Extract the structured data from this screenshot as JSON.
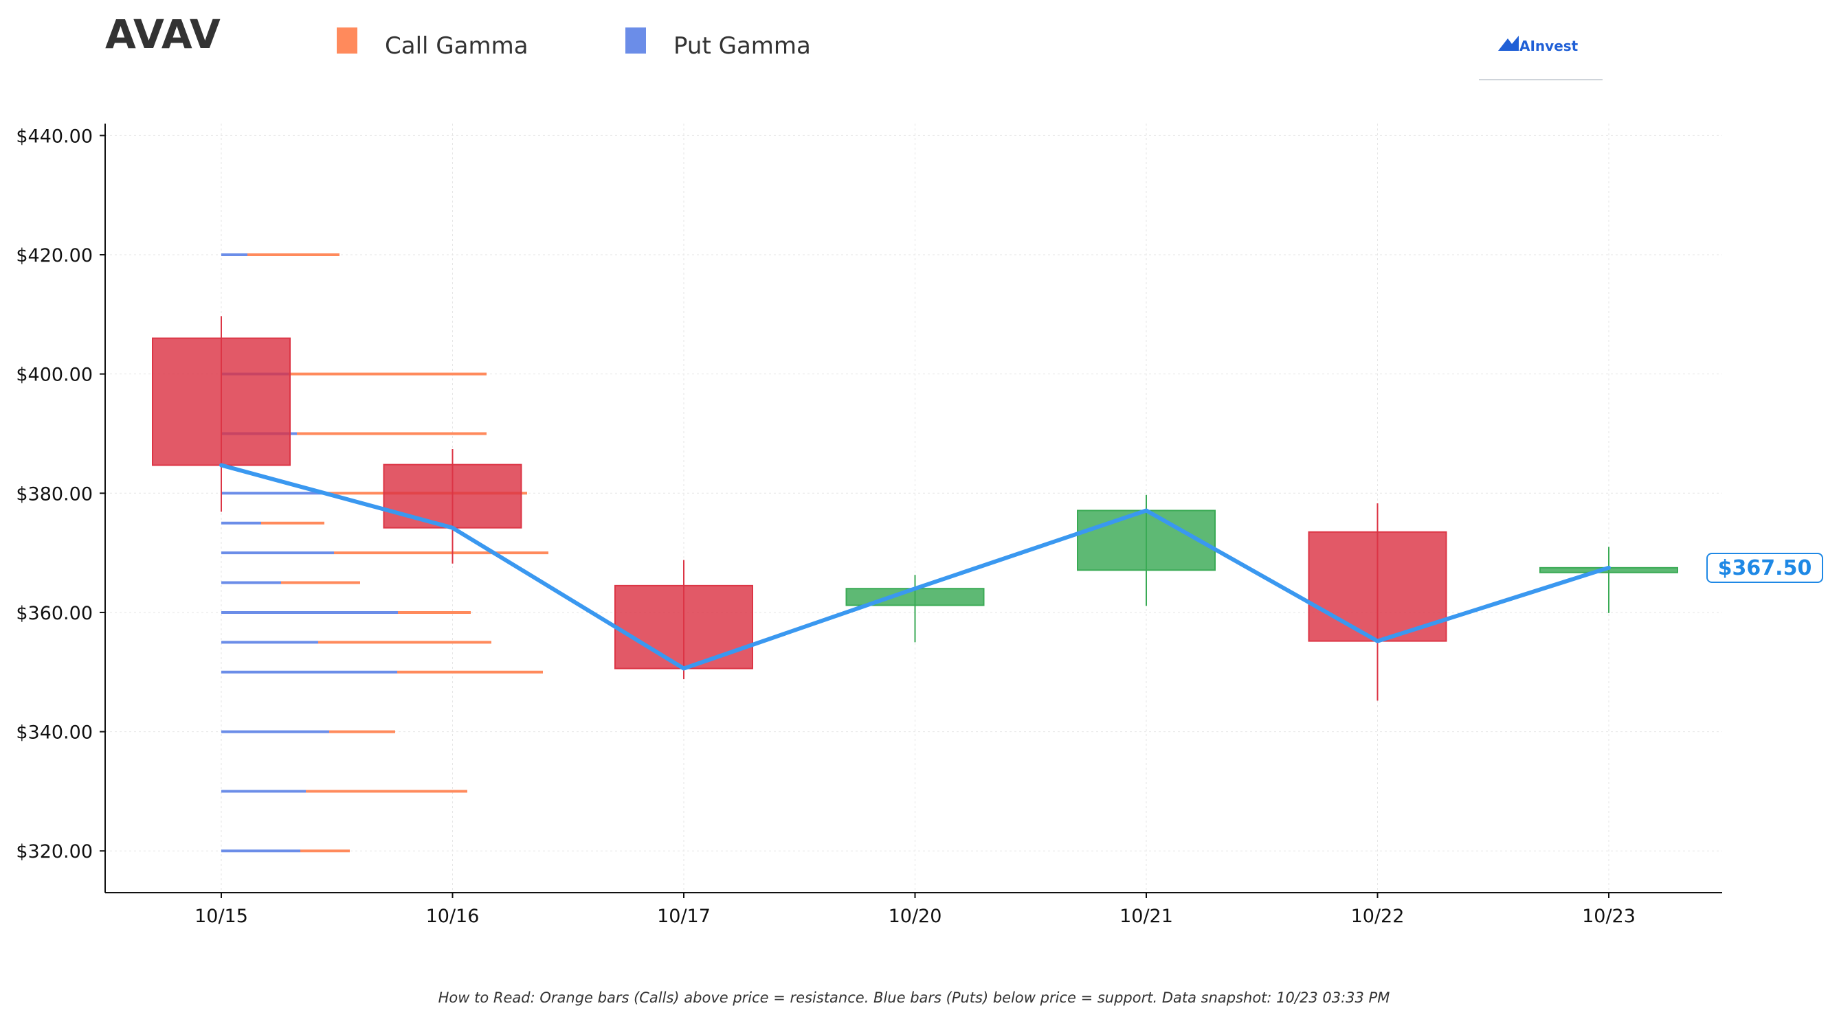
{
  "title": "AVAV",
  "legend": {
    "call_label": "Call Gamma",
    "put_label": "Put Gamma",
    "call_color": "#ff8a5c",
    "put_color": "#6b8de8"
  },
  "brand": {
    "name": "AInvest",
    "color": "#1f5fd6"
  },
  "footnote": "How to Read: Orange bars (Calls) above price = resistance. Blue bars (Puts) below price = support. Data snapshot: 10/23 03:33 PM",
  "current_price_label": "$367.50",
  "colors": {
    "up": "#3aaa55",
    "down": "#dc3545",
    "price_line": "#3a98f0",
    "price_tag_text": "#1e88e5",
    "grid": "#e6e6e6"
  },
  "chart_data": {
    "type": "candlestick",
    "ylim": [
      313,
      442
    ],
    "y_ticks": [
      320,
      340,
      360,
      380,
      400,
      420,
      440
    ],
    "y_tick_labels": [
      "$320.00",
      "$340.00",
      "$360.00",
      "$380.00",
      "$400.00",
      "$420.00",
      "$440.00"
    ],
    "categories": [
      "10/15",
      "10/16",
      "10/17",
      "10/20",
      "10/21",
      "10/22",
      "10/23"
    ],
    "candles": [
      {
        "date": "10/15",
        "open": 406.0,
        "close": 384.7,
        "high": 409.7,
        "low": 376.9
      },
      {
        "date": "10/16",
        "open": 384.8,
        "close": 374.2,
        "high": 387.4,
        "low": 368.2
      },
      {
        "date": "10/17",
        "open": 364.5,
        "close": 350.6,
        "high": 368.8,
        "low": 348.8
      },
      {
        "date": "10/20",
        "open": 361.2,
        "close": 364.0,
        "high": 366.3,
        "low": 355.0
      },
      {
        "date": "10/21",
        "open": 367.1,
        "close": 377.1,
        "high": 379.7,
        "low": 361.1
      },
      {
        "date": "10/22",
        "open": 373.5,
        "close": 355.2,
        "high": 378.3,
        "low": 345.2
      },
      {
        "date": "10/23",
        "open": 366.7,
        "close": 367.5,
        "high": 371.0,
        "low": 359.9
      }
    ],
    "close_line": [
      384.7,
      374.2,
      350.6,
      364.0,
      377.1,
      355.2,
      367.5
    ],
    "gamma_levels": [
      {
        "strike": 420,
        "put": 0.38,
        "call": 1.34
      },
      {
        "strike": 400,
        "put": 0.98,
        "call": 2.88
      },
      {
        "strike": 390,
        "put": 1.1,
        "call": 2.76
      },
      {
        "strike": 380,
        "put": 1.49,
        "call": 2.96
      },
      {
        "strike": 375,
        "put": 0.58,
        "call": 0.92
      },
      {
        "strike": 370,
        "put": 1.64,
        "call": 3.12
      },
      {
        "strike": 365,
        "put": 0.87,
        "call": 1.15
      },
      {
        "strike": 360,
        "put": 2.57,
        "call": 1.06
      },
      {
        "strike": 355,
        "put": 1.41,
        "call": 2.52
      },
      {
        "strike": 350,
        "put": 2.56,
        "call": 2.12
      },
      {
        "strike": 340,
        "put": 1.57,
        "call": 0.96
      },
      {
        "strike": 330,
        "put": 1.23,
        "call": 2.35
      },
      {
        "strike": 320,
        "put": 1.15,
        "call": 0.72
      }
    ]
  }
}
